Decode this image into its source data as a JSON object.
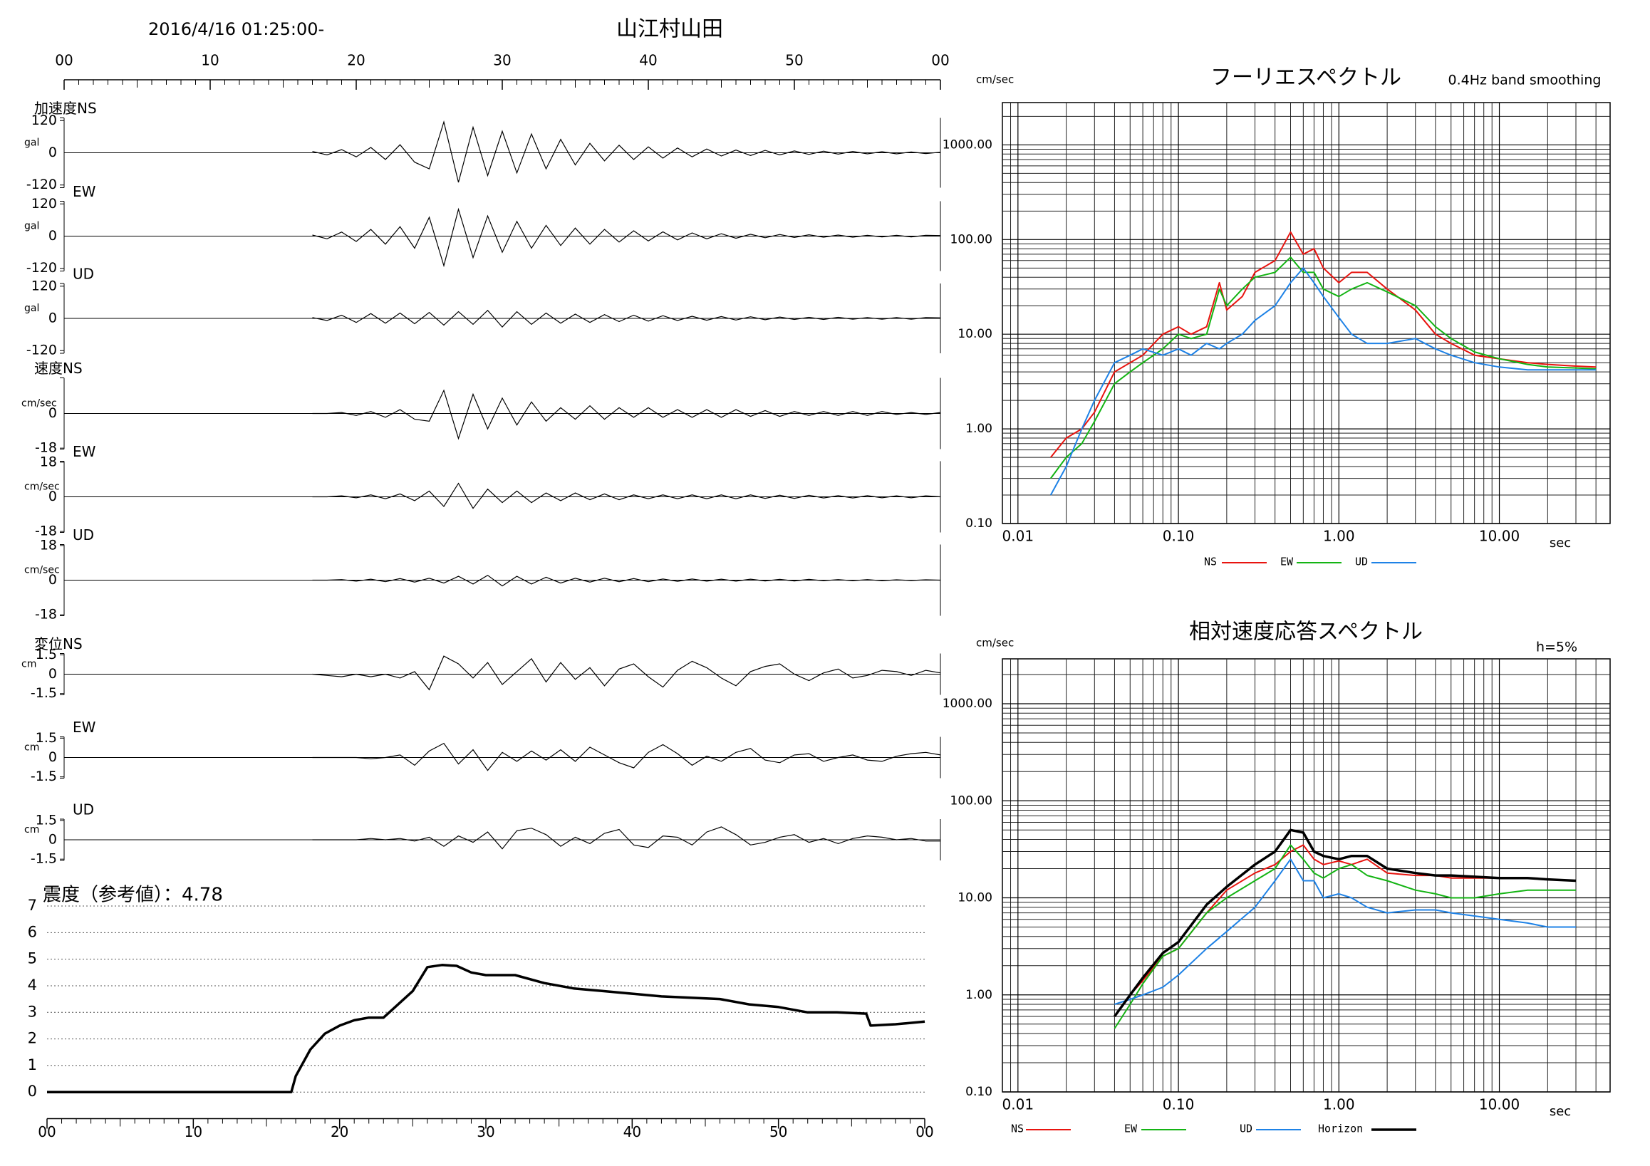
{
  "chart_data": [
    {
      "type": "waveform",
      "header": "2016/4/16 01:25:00-",
      "title": "山江村山田",
      "color": "#000000",
      "xlim": [
        0,
        60
      ],
      "xticks": [
        {
          "value": 0,
          "label": "00"
        },
        10,
        20,
        30,
        40,
        50,
        {
          "value": 60,
          "label": "00"
        }
      ],
      "x": [
        17,
        18,
        19,
        20,
        21,
        22,
        23,
        24,
        25,
        26,
        27,
        28,
        29,
        30,
        31,
        32,
        33,
        34,
        35,
        36,
        37,
        38,
        39,
        40,
        41,
        42,
        43,
        44,
        45,
        46,
        47,
        48,
        49,
        50,
        51,
        52,
        53,
        54,
        55,
        56,
        57,
        58,
        59,
        60
      ],
      "panels": [
        {
          "label": "加速度NS",
          "unit": "gal",
          "ylim": [
            -130,
            130
          ],
          "yticks": [
            120,
            0,
            -120
          ],
          "values": [
            5,
            -8,
            12,
            -15,
            20,
            -25,
            30,
            -35,
            -60,
            115,
            -110,
            95,
            -85,
            80,
            -75,
            70,
            -60,
            50,
            -45,
            35,
            -30,
            28,
            -25,
            22,
            -20,
            18,
            -15,
            14,
            -12,
            10,
            -10,
            9,
            -8,
            7,
            -6,
            6,
            -5,
            5,
            -4,
            4,
            -4,
            3,
            -3,
            2
          ]
        },
        {
          "label": "EW",
          "unit": "gal",
          "ylim": [
            -130,
            130
          ],
          "yticks": [
            120,
            0,
            -120
          ],
          "values": [
            4,
            -10,
            15,
            -20,
            25,
            -30,
            35,
            -45,
            70,
            -110,
            100,
            -80,
            75,
            -60,
            55,
            -45,
            40,
            -35,
            30,
            -30,
            25,
            -22,
            20,
            -18,
            16,
            -14,
            12,
            -10,
            9,
            -8,
            7,
            -6,
            6,
            -5,
            5,
            -4,
            4,
            -4,
            3,
            -3,
            3,
            -3,
            3,
            2
          ]
        },
        {
          "label": "UD",
          "unit": "gal",
          "ylim": [
            -130,
            130
          ],
          "yticks": [
            120,
            0,
            -120
          ],
          "values": [
            3,
            -8,
            12,
            -15,
            18,
            -18,
            20,
            -20,
            22,
            -25,
            25,
            -22,
            30,
            -32,
            25,
            -22,
            20,
            -18,
            16,
            -15,
            14,
            -12,
            12,
            -10,
            10,
            -8,
            8,
            -7,
            7,
            -6,
            6,
            -5,
            5,
            -4,
            4,
            -4,
            4,
            -3,
            3,
            -3,
            3,
            -3,
            3,
            2
          ]
        },
        {
          "label": "速度NS",
          "unit": "cm/sec",
          "ylim": [
            -18.5,
            18.5
          ],
          "yticks": [
            0,
            -18
          ],
          "values": [
            0,
            0,
            0.5,
            -1,
            1,
            -2,
            2,
            -3,
            -4,
            12,
            -13,
            10,
            -8,
            8,
            -6,
            6,
            -4,
            3,
            -3,
            4,
            -3,
            3,
            -2,
            3,
            -2,
            2,
            -2,
            2,
            -2,
            2,
            -1.5,
            1.5,
            -1.5,
            1,
            -1,
            1,
            -1,
            1,
            -1,
            1,
            -0.5,
            0.5,
            -0.5,
            0.5
          ]
        },
        {
          "label": "EW",
          "unit": "cm/sec",
          "ylim": [
            -18.5,
            18.5
          ],
          "yticks": [
            18,
            0,
            -18
          ],
          "values": [
            0,
            0,
            0.5,
            -0.5,
            1,
            -1,
            1.5,
            -2,
            3,
            -5,
            7,
            -6,
            4,
            -3,
            3,
            -3,
            2,
            -2,
            2,
            -1.5,
            1.5,
            -1.5,
            1,
            -1,
            1,
            -1,
            1,
            -1,
            1,
            -1,
            1,
            -0.8,
            0.8,
            -0.8,
            0.8,
            -0.6,
            0.6,
            -0.6,
            0.6,
            -0.5,
            0.5,
            -0.5,
            0.5,
            0
          ]
        },
        {
          "label": "UD",
          "unit": "cm/sec",
          "ylim": [
            -18.5,
            18.5
          ],
          "yticks": [
            18,
            0,
            -18
          ],
          "values": [
            0,
            0,
            0.3,
            -0.5,
            0.5,
            -0.8,
            0.8,
            -1,
            1,
            -1.5,
            2,
            -2,
            2.5,
            -3,
            2,
            -2,
            1.5,
            -1.5,
            1,
            -1,
            1,
            -0.8,
            0.8,
            -0.8,
            0.6,
            -0.6,
            0.6,
            -0.5,
            0.5,
            -0.5,
            0.5,
            -0.4,
            0.4,
            -0.4,
            0.4,
            -0.3,
            0.3,
            -0.3,
            0.3,
            -0.3,
            0.2,
            -0.2,
            0.2,
            0
          ]
        },
        {
          "label": "変位NS",
          "unit": "cm",
          "ylim": [
            -1.6,
            1.6
          ],
          "yticks": [
            1.5,
            0,
            -1.5
          ],
          "values": [
            0,
            -0.1,
            -0.2,
            0,
            -0.2,
            0,
            -0.3,
            0.2,
            -1.2,
            1.4,
            0.8,
            -0.3,
            0.9,
            -0.8,
            0.2,
            1.2,
            -0.6,
            0.9,
            -0.4,
            0.5,
            -0.9,
            0.4,
            0.8,
            -0.2,
            -1.0,
            0.3,
            1.0,
            0.5,
            -0.3,
            -0.9,
            0.2,
            0.6,
            0.8,
            0,
            -0.5,
            0.1,
            0.4,
            -0.3,
            -0.1,
            0.3,
            0.2,
            -0.1,
            0.3,
            0.1
          ]
        },
        {
          "label": "EW",
          "unit": "cm",
          "ylim": [
            -1.6,
            1.6
          ],
          "yticks": [
            1.5,
            0,
            -1.5
          ],
          "values": [
            0,
            0,
            0,
            0,
            -0.1,
            0,
            0.2,
            -0.6,
            0.5,
            1.1,
            -0.5,
            0.6,
            -1.0,
            0.4,
            -0.3,
            0.5,
            -0.2,
            0.6,
            -0.3,
            0.8,
            0.2,
            -0.4,
            -0.8,
            0.4,
            1.0,
            0.3,
            -0.6,
            0.1,
            -0.3,
            0.4,
            0.7,
            -0.2,
            -0.4,
            0.2,
            0.3,
            -0.3,
            0,
            0.2,
            -0.2,
            -0.3,
            0.1,
            0.3,
            0.4,
            0.2
          ]
        },
        {
          "label": "UD",
          "unit": "cm",
          "ylim": [
            -1.6,
            1.6
          ],
          "yticks": [
            1.5,
            0,
            -1.5
          ],
          "values": [
            0,
            0,
            0,
            0,
            0.1,
            0,
            0.1,
            -0.1,
            0.2,
            -0.5,
            0.3,
            -0.2,
            0.6,
            -0.7,
            0.7,
            0.9,
            0.4,
            -0.5,
            0.2,
            -0.3,
            0.5,
            0.8,
            -0.4,
            -0.6,
            0.3,
            0.2,
            -0.4,
            0.6,
            1.0,
            0.4,
            -0.4,
            -0.2,
            0.2,
            0.4,
            -0.2,
            0.1,
            -0.3,
            0.1,
            0.3,
            0.2,
            0,
            0.1,
            -0.1,
            -0.1
          ]
        }
      ]
    },
    {
      "type": "line",
      "title": "震度（参考値）：4.78",
      "color": "#000000",
      "grid": true,
      "xlim": [
        0,
        60
      ],
      "xticks": [
        {
          "value": 0,
          "label": "00"
        },
        10,
        20,
        30,
        40,
        50,
        {
          "value": 60,
          "label": "00"
        }
      ],
      "ylim": [
        -1,
        7
      ],
      "yticks": [
        0,
        1,
        2,
        3,
        4,
        5,
        6,
        7
      ],
      "x": [
        0,
        16.7,
        17,
        18,
        19,
        20,
        21,
        22,
        23,
        24,
        25,
        26,
        27,
        28,
        29,
        30,
        32,
        34,
        36,
        38,
        40,
        42,
        44,
        46,
        48,
        50,
        52,
        54,
        56,
        56.3,
        58,
        60
      ],
      "values": [
        0,
        0,
        0.6,
        1.6,
        2.2,
        2.5,
        2.7,
        2.8,
        2.8,
        3.3,
        3.8,
        4.7,
        4.78,
        4.75,
        4.5,
        4.4,
        4.4,
        4.1,
        3.9,
        3.8,
        3.7,
        3.6,
        3.55,
        3.5,
        3.3,
        3.2,
        3.0,
        3.0,
        2.95,
        2.5,
        2.55,
        2.65
      ]
    },
    {
      "type": "line",
      "title": "フーリエスペクトル",
      "subtitle": "0.4Hz band smoothing",
      "xlabel": "sec",
      "ylabel": "cm/sec",
      "xscale": "log",
      "yscale": "log",
      "grid": true,
      "xlim": [
        0.008,
        49
      ],
      "ylim": [
        0.1,
        2800
      ],
      "xticks": [
        0.01,
        {
          "value": 0.1,
          "label": "0.10"
        },
        {
          "value": 1,
          "label": "1.00"
        },
        {
          "value": 10,
          "label": "10.00"
        }
      ],
      "yticks": [
        {
          "value": 0.1,
          "label": "0.10"
        },
        {
          "value": 1,
          "label": "1.00"
        },
        {
          "value": 10,
          "label": "10.00"
        },
        {
          "value": 100,
          "label": "100.00"
        },
        {
          "value": 1000,
          "label": "1000.00"
        }
      ],
      "x": [
        0.016,
        0.02,
        0.025,
        0.03,
        0.04,
        0.05,
        0.06,
        0.08,
        0.1,
        0.12,
        0.15,
        0.18,
        0.2,
        0.25,
        0.3,
        0.4,
        0.5,
        0.6,
        0.7,
        0.8,
        1,
        1.2,
        1.5,
        2,
        3,
        4,
        5,
        7,
        10,
        15,
        20,
        30,
        40
      ],
      "series": [
        {
          "name": "NS",
          "color": "#e8140f",
          "values": [
            0.5,
            0.8,
            1.0,
            1.5,
            4,
            5,
            6,
            10,
            12,
            10,
            12,
            35,
            18,
            25,
            45,
            60,
            120,
            70,
            80,
            50,
            35,
            45,
            45,
            30,
            18,
            10,
            8,
            6,
            5.5,
            5,
            4.8,
            4.6,
            4.5
          ]
        },
        {
          "name": "EW",
          "color": "#14b414",
          "values": [
            0.3,
            0.5,
            0.7,
            1.2,
            3,
            4,
            5,
            7,
            10,
            9,
            10,
            30,
            20,
            30,
            40,
            45,
            65,
            45,
            45,
            30,
            25,
            30,
            35,
            28,
            20,
            12,
            9,
            6.5,
            5.5,
            4.8,
            4.5,
            4.4,
            4.3
          ]
        },
        {
          "name": "UD",
          "color": "#1e82e6",
          "values": [
            0.2,
            0.4,
            1,
            2,
            5,
            6,
            7,
            6,
            7,
            6,
            8,
            7,
            8,
            10,
            14,
            20,
            35,
            50,
            35,
            25,
            15,
            10,
            8,
            8,
            9,
            7,
            6,
            5,
            4.5,
            4.2,
            4.2,
            4.2,
            4.2
          ]
        }
      ]
    },
    {
      "type": "line",
      "title": "相対速度応答スペクトル",
      "annotation": "h=5%",
      "xlabel": "sec",
      "ylabel": "cm/sec",
      "xscale": "log",
      "yscale": "log",
      "grid": true,
      "xlim": [
        0.008,
        49
      ],
      "ylim": [
        0.1,
        2900
      ],
      "xticks": [
        0.01,
        {
          "value": 0.1,
          "label": "0.10"
        },
        {
          "value": 1,
          "label": "1.00"
        },
        {
          "value": 10,
          "label": "10.00"
        }
      ],
      "yticks": [
        {
          "value": 0.1,
          "label": "0.10"
        },
        {
          "value": 1,
          "label": "1.00"
        },
        {
          "value": 10,
          "label": "10.00"
        },
        {
          "value": 100,
          "label": "100.00"
        },
        {
          "value": 1000,
          "label": "1000.00"
        }
      ],
      "x": [
        0.04,
        0.05,
        0.06,
        0.08,
        0.1,
        0.15,
        0.2,
        0.3,
        0.4,
        0.5,
        0.6,
        0.7,
        0.8,
        1,
        1.2,
        1.5,
        2,
        3,
        4,
        5,
        7,
        10,
        15,
        20,
        30
      ],
      "series": [
        {
          "name": "NS",
          "color": "#e8140f",
          "values": [
            0.6,
            1.0,
            1.4,
            2.5,
            3,
            7,
            12,
            18,
            22,
            30,
            35,
            25,
            22,
            24,
            22,
            25,
            18,
            17,
            17,
            16,
            16,
            16,
            16,
            15.5,
            15
          ]
        },
        {
          "name": "EW",
          "color": "#14b414",
          "values": [
            0.45,
            0.8,
            1.3,
            2.5,
            3,
            7,
            10,
            15,
            20,
            35,
            25,
            18,
            16,
            20,
            22,
            17,
            15,
            12,
            11,
            10,
            10,
            11,
            12,
            12,
            12
          ]
        },
        {
          "name": "UD",
          "color": "#1e82e6",
          "values": [
            0.8,
            0.9,
            1.0,
            1.2,
            1.6,
            3,
            4.5,
            8,
            15,
            25,
            15,
            15,
            10,
            11,
            10,
            8,
            7,
            7.5,
            7.5,
            7,
            6.5,
            6,
            5.5,
            5,
            5
          ]
        },
        {
          "name": "Horizon",
          "color": "#000000",
          "values": [
            0.6,
            1.0,
            1.5,
            2.7,
            3.5,
            8.5,
            13,
            22,
            30,
            50,
            47,
            30,
            27,
            25,
            27,
            27,
            20,
            18,
            17,
            17,
            16.5,
            16,
            16,
            15.5,
            15
          ]
        }
      ]
    }
  ]
}
